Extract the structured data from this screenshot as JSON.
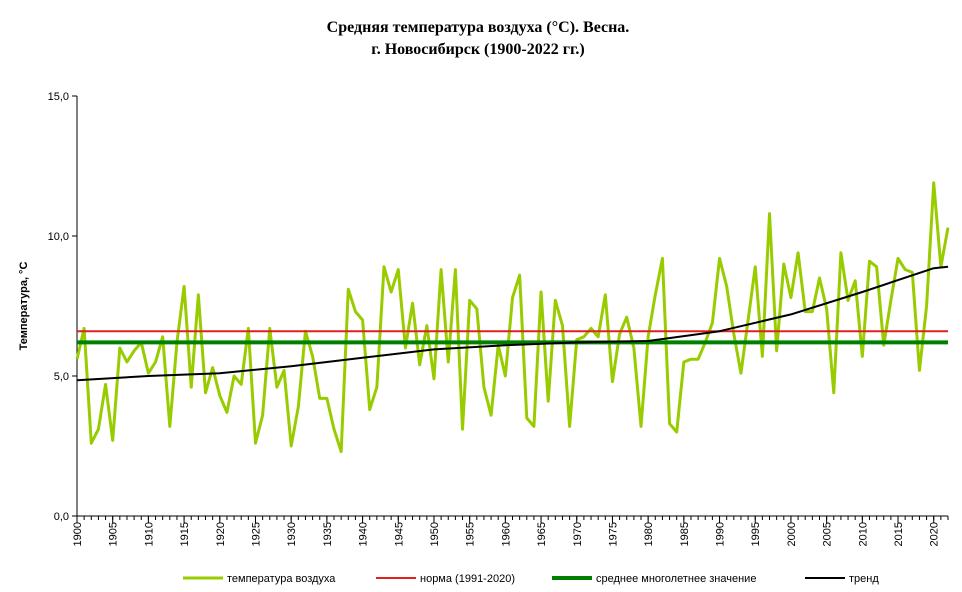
{
  "chart_data": {
    "type": "line",
    "title": "Средняя температура воздуха (°С). Весна.",
    "subtitle": "г. Новосибирск (1900-2022 гг.)",
    "y_label": "Температура, °С",
    "x": [
      1900,
      1901,
      1902,
      1903,
      1904,
      1905,
      1906,
      1907,
      1908,
      1909,
      1910,
      1911,
      1912,
      1913,
      1914,
      1915,
      1916,
      1917,
      1918,
      1919,
      1920,
      1921,
      1922,
      1923,
      1924,
      1925,
      1926,
      1927,
      1928,
      1929,
      1930,
      1931,
      1932,
      1933,
      1934,
      1935,
      1936,
      1937,
      1938,
      1939,
      1940,
      1941,
      1942,
      1943,
      1944,
      1945,
      1946,
      1947,
      1948,
      1949,
      1950,
      1951,
      1952,
      1953,
      1954,
      1955,
      1956,
      1957,
      1958,
      1959,
      1960,
      1961,
      1962,
      1963,
      1964,
      1965,
      1966,
      1967,
      1968,
      1969,
      1970,
      1971,
      1972,
      1973,
      1974,
      1975,
      1976,
      1977,
      1978,
      1979,
      1980,
      1981,
      1982,
      1983,
      1984,
      1985,
      1986,
      1987,
      1988,
      1989,
      1990,
      1991,
      1992,
      1993,
      1994,
      1995,
      1996,
      1997,
      1998,
      1999,
      2000,
      2001,
      2002,
      2003,
      2004,
      2005,
      2006,
      2007,
      2008,
      2009,
      2010,
      2011,
      2012,
      2013,
      2014,
      2015,
      2016,
      2017,
      2018,
      2019,
      2020,
      2021,
      2022
    ],
    "xlim": [
      1900,
      2022
    ],
    "xticks": [
      1900,
      1905,
      1910,
      1915,
      1920,
      1925,
      1930,
      1935,
      1940,
      1945,
      1950,
      1955,
      1960,
      1965,
      1970,
      1975,
      1980,
      1985,
      1990,
      1995,
      2000,
      2005,
      2010,
      2015,
      2020
    ],
    "ylim": [
      0,
      15
    ],
    "yticks": [
      {
        "value": 0,
        "label": "0,0"
      },
      {
        "value": 5,
        "label": "5,0"
      },
      {
        "value": 10,
        "label": "10,0"
      },
      {
        "value": 15,
        "label": "15,0"
      }
    ],
    "series": [
      {
        "name": "температура воздуха",
        "color": "#99cc00",
        "values": [
          5.6,
          6.7,
          2.6,
          3.1,
          4.7,
          2.7,
          6.0,
          5.5,
          5.9,
          6.2,
          5.1,
          5.5,
          6.4,
          3.2,
          6.2,
          8.2,
          4.6,
          7.9,
          4.4,
          5.3,
          4.3,
          3.7,
          5.0,
          4.7,
          6.7,
          2.6,
          3.6,
          6.7,
          4.6,
          5.2,
          2.5,
          3.9,
          6.6,
          5.7,
          4.2,
          4.2,
          3.1,
          2.3,
          8.1,
          7.3,
          7.0,
          3.8,
          4.6,
          8.9,
          8.0,
          8.8,
          6.0,
          7.6,
          5.4,
          6.8,
          4.9,
          8.8,
          5.5,
          8.8,
          3.1,
          7.7,
          7.4,
          4.6,
          3.6,
          6.1,
          5.0,
          7.8,
          8.6,
          3.5,
          3.2,
          8.0,
          4.1,
          7.7,
          6.8,
          3.2,
          6.3,
          6.4,
          6.7,
          6.4,
          7.9,
          4.8,
          6.5,
          7.1,
          6.0,
          3.2,
          6.4,
          7.9,
          9.2,
          3.3,
          3.0,
          5.5,
          5.6,
          5.6,
          6.2,
          6.9,
          9.2,
          8.2,
          6.5,
          5.1,
          7.0,
          8.9,
          5.7,
          10.8,
          5.9,
          9.0,
          7.8,
          9.4,
          7.3,
          7.3,
          8.5,
          7.4,
          4.4,
          9.4,
          7.7,
          8.4,
          5.7,
          9.1,
          8.9,
          6.1,
          7.7,
          9.2,
          8.8,
          8.7,
          5.2,
          7.5,
          11.9,
          8.9,
          10.3
        ]
      },
      {
        "name": "норма (1991-2020)",
        "color": "#e02020",
        "value": 6.6
      },
      {
        "name": "среднее многолетнее значение",
        "color": "#008000",
        "value": 6.2
      },
      {
        "name": "тренд",
        "color": "#000000",
        "x": [
          1900,
          1910,
          1920,
          1930,
          1940,
          1950,
          1960,
          1970,
          1980,
          1990,
          2000,
          2010,
          2020,
          2022
        ],
        "values": [
          4.85,
          5.0,
          5.1,
          5.35,
          5.65,
          5.95,
          6.1,
          6.2,
          6.25,
          6.6,
          7.2,
          8.0,
          8.85,
          8.9
        ]
      }
    ]
  }
}
